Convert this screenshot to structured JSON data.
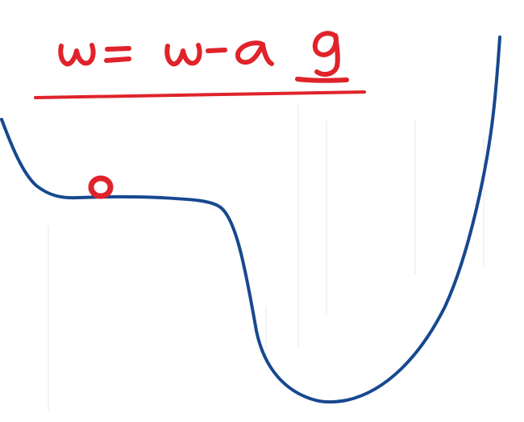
{
  "equation": {
    "lhs": "w",
    "equals": "=",
    "rhs_weight": "w",
    "minus": "-",
    "learning_rate": "α",
    "gradient": "g"
  },
  "colors": {
    "equation_ink": "#e0232a",
    "curve_ink": "#17488f",
    "ball_ink": "#e0232a",
    "background": "#ffffff"
  },
  "diagram": {
    "type": "loss-landscape-sketch",
    "ball_position": "local-minimum-plateau"
  }
}
